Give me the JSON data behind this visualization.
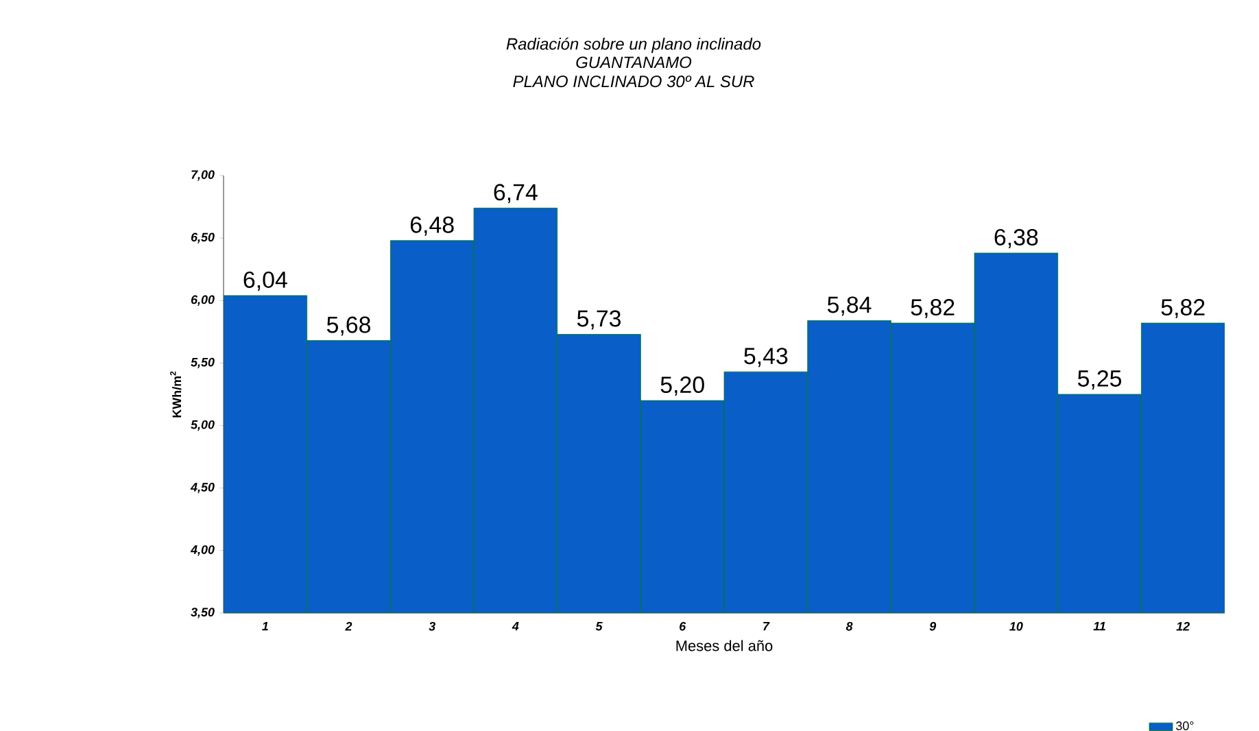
{
  "chart_data": {
    "type": "bar",
    "title": "Radiación sobre un plano inclinado",
    "subtitle": "GUANTANAMO\nPLANO INCLINADO 30º AL SUR",
    "xlabel": "Meses del año",
    "ylabel": "KWh/m$^{2}$",
    "categories": [
      "1",
      "2",
      "3",
      "4",
      "5",
      "6",
      "7",
      "8",
      "9",
      "10",
      "11",
      "12"
    ],
    "series": [
      {
        "name": "30°",
        "color": "#0a5ec8",
        "values": [
          6.04,
          5.68,
          6.48,
          6.74,
          5.73,
          5.2,
          5.43,
          5.84,
          5.82,
          6.38,
          5.25,
          5.82
        ],
        "value_labels": [
          "6,04",
          "5,68",
          "6,48",
          "6,74",
          "5,73",
          "5,20",
          "5,43",
          "5,84",
          "5,82",
          "6,38",
          "5,25",
          "5,82"
        ]
      }
    ],
    "ylim": [
      3.5,
      7.0
    ],
    "yticks": [
      {
        "value": 3.5,
        "label": "3,50"
      },
      {
        "value": 4.0,
        "label": "4,00"
      },
      {
        "value": 4.5,
        "label": "4,50"
      },
      {
        "value": 5.0,
        "label": "5,00"
      },
      {
        "value": 5.5,
        "label": "5,50"
      },
      {
        "value": 6.0,
        "label": "6,00"
      },
      {
        "value": 6.5,
        "label": "6,50"
      },
      {
        "value": 7.0,
        "label": "7,00"
      }
    ],
    "grid": false,
    "legend": "bottom right"
  }
}
